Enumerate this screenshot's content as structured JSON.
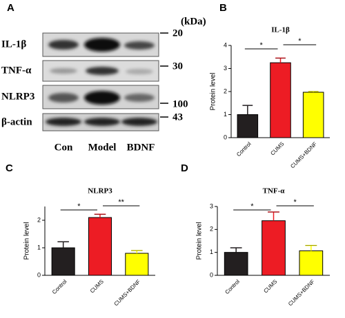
{
  "blot": {
    "panel": "A",
    "unit": "(kDa)",
    "rows": [
      {
        "label": "IL-1β",
        "kda": "20"
      },
      {
        "label": "TNF-α",
        "kda": "30"
      },
      {
        "label": "NLRP3",
        "kda": "100"
      },
      {
        "label": "β-actin",
        "kda": "43"
      }
    ],
    "lanes": [
      "Con",
      "Model",
      "BDNF"
    ]
  },
  "chart_data": [
    {
      "type": "bar",
      "panel": "B",
      "title": "IL-1β",
      "y_label": "Protein level",
      "categories": [
        "Control",
        "CUMS",
        "CUMS+BDNF"
      ],
      "values": [
        1.0,
        3.25,
        1.97
      ],
      "errors": [
        0.4,
        0.2,
        0.03
      ],
      "colors": [
        "#231f20",
        "#ed1c24",
        "#ffff00"
      ],
      "ylim": [
        0,
        4
      ],
      "yticks": [
        0,
        1,
        2,
        3,
        4
      ],
      "annotations": [
        "*",
        "*"
      ]
    },
    {
      "type": "bar",
      "panel": "C",
      "title": "NLRP3",
      "y_label": "Protein level",
      "categories": [
        "Control",
        "CUMS",
        "CUMS+BDNF"
      ],
      "values": [
        1.0,
        2.1,
        0.8
      ],
      "errors": [
        0.22,
        0.12,
        0.1
      ],
      "colors": [
        "#231f20",
        "#ed1c24",
        "#ffff00"
      ],
      "ylim": [
        0,
        2.5
      ],
      "yticks": [
        0,
        1,
        2
      ],
      "annotations": [
        "*",
        "**"
      ]
    },
    {
      "type": "bar",
      "panel": "D",
      "title": "TNF-α",
      "y_label": "Protein level",
      "categories": [
        "Control",
        "CUMS",
        "CUMS+BDNF"
      ],
      "values": [
        1.0,
        2.38,
        1.07
      ],
      "errors": [
        0.2,
        0.38,
        0.23
      ],
      "colors": [
        "#231f20",
        "#ed1c24",
        "#ffff00"
      ],
      "ylim": [
        0,
        3
      ],
      "yticks": [
        0,
        1,
        2,
        3
      ],
      "annotations": [
        "*",
        "*"
      ]
    }
  ]
}
